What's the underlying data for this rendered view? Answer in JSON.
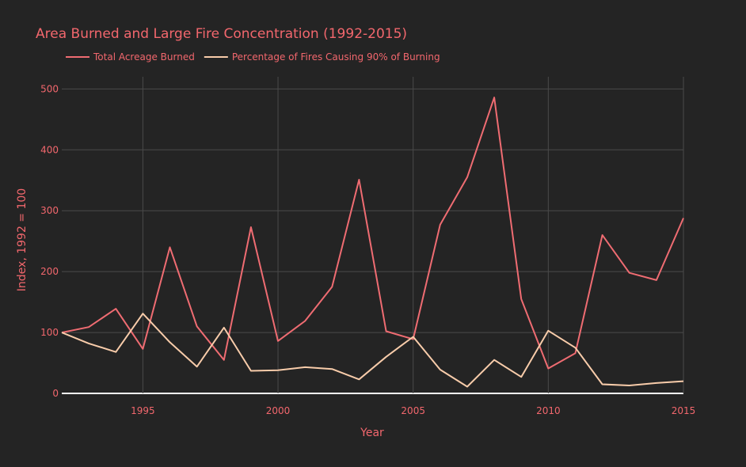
{
  "colors": {
    "background": "#242424",
    "grid": "#4a4a4a",
    "zero_line": "#ffffff",
    "text_accent": "#f2676d",
    "series_acreage": "#ef6c72",
    "series_percentage": "#f8ccaa"
  },
  "chart_data": {
    "type": "line",
    "title": "Area Burned and Large Fire Concentration (1992-2015)",
    "xlabel": "Year",
    "ylabel": "Index, 1992 = 100",
    "xlim": [
      1992,
      2015
    ],
    "ylim": [
      0,
      520
    ],
    "x_ticks": [
      1995,
      2000,
      2005,
      2010,
      2015
    ],
    "y_ticks": [
      0,
      100,
      200,
      300,
      400,
      500
    ],
    "grid": true,
    "legend_position": "top-left",
    "series": [
      {
        "name": "Total Acreage Burned",
        "color": "#ef6c72",
        "x": [
          1992,
          1993,
          1994,
          1995,
          1996,
          1997,
          1998,
          1999,
          2000,
          2001,
          2002,
          2003,
          2004,
          2005,
          2006,
          2007,
          2008,
          2009,
          2010,
          2011,
          2012,
          2013,
          2014,
          2015
        ],
        "y": [
          100,
          109,
          139,
          73,
          240,
          110,
          55,
          273,
          86,
          119,
          175,
          351,
          102,
          89,
          277,
          355,
          486,
          155,
          41,
          66,
          260,
          198,
          186,
          288
        ]
      },
      {
        "name": "Percentage of Fires Causing 90% of Burning",
        "color": "#f8ccaa",
        "x": [
          1992,
          1993,
          1994,
          1995,
          1996,
          1997,
          1998,
          1999,
          2000,
          2001,
          2002,
          2003,
          2004,
          2005,
          2006,
          2007,
          2008,
          2009,
          2010,
          2011,
          2012,
          2013,
          2014,
          2015
        ],
        "y": [
          100,
          82,
          68,
          131,
          84,
          44,
          108,
          37,
          38,
          43,
          40,
          23,
          60,
          93,
          39,
          11,
          55,
          27,
          103,
          75,
          15,
          13,
          17,
          20
        ]
      }
    ]
  }
}
